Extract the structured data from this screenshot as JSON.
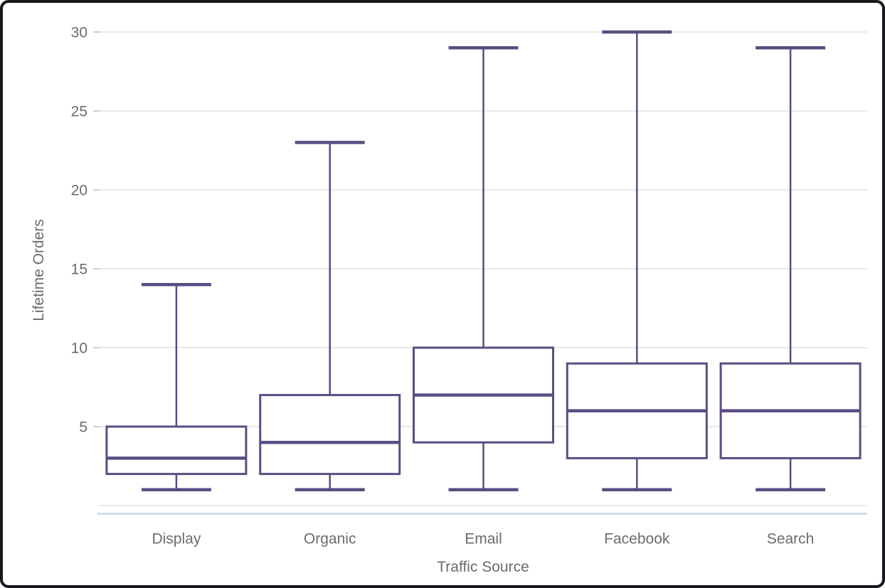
{
  "chart_data": {
    "type": "box",
    "title": "",
    "xlabel": "Traffic Source",
    "ylabel": "Lifetime Orders",
    "categories": [
      "Display",
      "Organic",
      "Email",
      "Facebook",
      "Search"
    ],
    "series": [
      {
        "name": "Display",
        "min": 1,
        "q1": 2,
        "median": 3,
        "q3": 5,
        "max": 14
      },
      {
        "name": "Organic",
        "min": 1,
        "q1": 2,
        "median": 4,
        "q3": 7,
        "max": 23
      },
      {
        "name": "Email",
        "min": 1,
        "q1": 4,
        "median": 7,
        "q3": 10,
        "max": 29
      },
      {
        "name": "Facebook",
        "min": 1,
        "q1": 3,
        "median": 6,
        "q3": 9,
        "max": 30
      },
      {
        "name": "Search",
        "min": 1,
        "q1": 3,
        "median": 6,
        "q3": 9,
        "max": 29
      }
    ],
    "yticks": [
      5,
      10,
      15,
      20,
      25,
      30
    ],
    "ylim": [
      0,
      30.5
    ],
    "grid": true,
    "legend": "none",
    "colors": {
      "box_stroke": "#5b4d82",
      "box_fill": "#ffffff",
      "gridline": "#e8e8e8",
      "baseline": "#ccd6e9",
      "text": "#6b6b6b",
      "tick_mark": "#cfcfcf",
      "background": "#ffffff",
      "frame_border": "#16181c"
    }
  }
}
